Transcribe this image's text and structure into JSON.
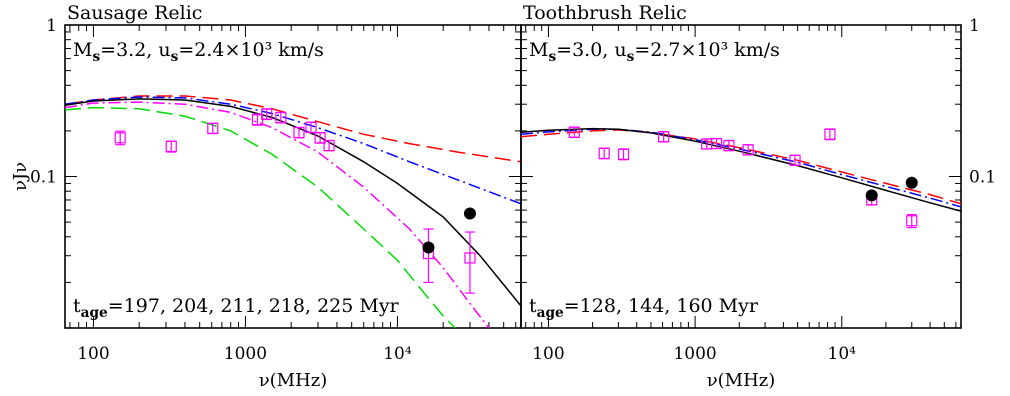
{
  "chart_data": [
    {
      "type": "line",
      "title": "Sausage Relic",
      "annotation_top": "M_s=3.2, u_s=2.4×10³ km/s",
      "annotation_bottom": "t_age=197, 204, 211, 218, 225 Myr",
      "xlabel": "ν(MHz)",
      "ylabel": "νJν",
      "x_scale": "log",
      "y_scale": "log",
      "xlim": [
        65,
        65000
      ],
      "ylim": [
        0.01,
        1
      ],
      "x_ticks": [
        {
          "value": 100,
          "label": "100"
        },
        {
          "value": 1000,
          "label": "1000"
        },
        {
          "value": 10000,
          "label": "10⁴"
        }
      ],
      "y_ticks": [
        {
          "value": 0.1,
          "label": "0.1"
        },
        {
          "value": 1,
          "label": "1"
        }
      ],
      "series": [
        {
          "color": "#ff0000",
          "dash": "long-dash",
          "points": [
            [
              65,
              0.3
            ],
            [
              100,
              0.32
            ],
            [
              200,
              0.34
            ],
            [
              400,
              0.34
            ],
            [
              800,
              0.32
            ],
            [
              1500,
              0.28
            ],
            [
              3000,
              0.23
            ],
            [
              6000,
              0.19
            ],
            [
              12000,
              0.165
            ],
            [
              25000,
              0.145
            ],
            [
              65000,
              0.125
            ]
          ]
        },
        {
          "color": "#0000ff",
          "dash": "dash-dot",
          "points": [
            [
              65,
              0.3
            ],
            [
              100,
              0.32
            ],
            [
              200,
              0.335
            ],
            [
              400,
              0.33
            ],
            [
              800,
              0.3
            ],
            [
              1500,
              0.26
            ],
            [
              3000,
              0.21
            ],
            [
              6000,
              0.165
            ],
            [
              12000,
              0.125
            ],
            [
              25000,
              0.095
            ],
            [
              65000,
              0.066
            ]
          ]
        },
        {
          "color": "#000000",
          "dash": "solid",
          "points": [
            [
              65,
              0.295
            ],
            [
              100,
              0.315
            ],
            [
              200,
              0.325
            ],
            [
              400,
              0.32
            ],
            [
              800,
              0.29
            ],
            [
              1500,
              0.245
            ],
            [
              3000,
              0.185
            ],
            [
              6000,
              0.125
            ],
            [
              10000,
              0.09
            ],
            [
              20000,
              0.054
            ],
            [
              35000,
              0.03
            ],
            [
              65000,
              0.014
            ]
          ]
        },
        {
          "color": "#ff00ff",
          "dash": "dash-dot",
          "points": [
            [
              65,
              0.285
            ],
            [
              100,
              0.305
            ],
            [
              200,
              0.31
            ],
            [
              400,
              0.3
            ],
            [
              800,
              0.265
            ],
            [
              1500,
              0.21
            ],
            [
              3000,
              0.145
            ],
            [
              6000,
              0.085
            ],
            [
              12000,
              0.045
            ],
            [
              20000,
              0.025
            ],
            [
              30000,
              0.0145
            ],
            [
              40000,
              0.01
            ]
          ]
        },
        {
          "color": "#00dd00",
          "dash": "long-dash",
          "points": [
            [
              65,
              0.275
            ],
            [
              100,
              0.285
            ],
            [
              200,
              0.28
            ],
            [
              400,
              0.25
            ],
            [
              800,
              0.2
            ],
            [
              1500,
              0.14
            ],
            [
              3000,
              0.085
            ],
            [
              6000,
              0.045
            ],
            [
              10000,
              0.028
            ],
            [
              15000,
              0.017
            ],
            [
              20000,
              0.012
            ],
            [
              24000,
              0.01
            ]
          ]
        }
      ],
      "observations_open": {
        "color": "#ff00ff",
        "points": [
          {
            "x": 150,
            "y": 0.18,
            "lo": 0.162,
            "hi": 0.199
          },
          {
            "x": 325,
            "y": 0.158,
            "lo": 0.145,
            "hi": 0.171
          },
          {
            "x": 610,
            "y": 0.208,
            "lo": 0.192,
            "hi": 0.224
          },
          {
            "x": 1200,
            "y": 0.237,
            "lo": 0.218,
            "hi": 0.258
          },
          {
            "x": 1380,
            "y": 0.258,
            "lo": 0.238,
            "hi": 0.28
          },
          {
            "x": 1710,
            "y": 0.245,
            "lo": 0.226,
            "hi": 0.265
          },
          {
            "x": 2250,
            "y": 0.195,
            "lo": 0.18,
            "hi": 0.211
          },
          {
            "x": 2700,
            "y": 0.211,
            "lo": 0.195,
            "hi": 0.228
          },
          {
            "x": 3100,
            "y": 0.18,
            "lo": 0.166,
            "hi": 0.195
          },
          {
            "x": 3550,
            "y": 0.16,
            "lo": 0.148,
            "hi": 0.173
          },
          {
            "x": 16000,
            "y": 0.031,
            "lo": 0.02,
            "hi": 0.045
          },
          {
            "x": 30000,
            "y": 0.029,
            "lo": 0.017,
            "hi": 0.043
          }
        ]
      },
      "observations_filled": {
        "color": "#000000",
        "points": [
          {
            "x": 16000,
            "y": 0.034
          },
          {
            "x": 30000,
            "y": 0.057
          }
        ]
      }
    },
    {
      "type": "line",
      "title": "Toothbrush Relic",
      "annotation_top": "M_s=3.0, u_s=2.7×10³ km/s",
      "annotation_bottom": "t_age=128, 144, 160 Myr",
      "xlabel": "ν(MHz)",
      "ylabel": "",
      "x_scale": "log",
      "y_scale": "log",
      "xlim": [
        65,
        65000
      ],
      "ylim": [
        0.01,
        1
      ],
      "x_ticks": [
        {
          "value": 100,
          "label": "100"
        },
        {
          "value": 1000,
          "label": "1000"
        },
        {
          "value": 10000,
          "label": "10⁴"
        }
      ],
      "y_ticks": [
        {
          "value": 0.1,
          "label": "0.1"
        },
        {
          "value": 1,
          "label": "1"
        }
      ],
      "series": [
        {
          "color": "#ff0000",
          "dash": "long-dash",
          "points": [
            [
              65,
              0.183
            ],
            [
              100,
              0.19
            ],
            [
              200,
              0.2
            ],
            [
              300,
              0.203
            ],
            [
              500,
              0.195
            ],
            [
              1000,
              0.177
            ],
            [
              2000,
              0.155
            ],
            [
              5000,
              0.128
            ],
            [
              10000,
              0.107
            ],
            [
              20000,
              0.09
            ],
            [
              40000,
              0.076
            ],
            [
              65000,
              0.066
            ]
          ]
        },
        {
          "color": "#0000ff",
          "dash": "dash-dot",
          "points": [
            [
              65,
              0.19
            ],
            [
              100,
              0.197
            ],
            [
              200,
              0.205
            ],
            [
              300,
              0.205
            ],
            [
              500,
              0.196
            ],
            [
              1000,
              0.175
            ],
            [
              2000,
              0.152
            ],
            [
              5000,
              0.124
            ],
            [
              10000,
              0.103
            ],
            [
              20000,
              0.086
            ],
            [
              40000,
              0.072
            ],
            [
              65000,
              0.063
            ]
          ]
        },
        {
          "color": "#000000",
          "dash": "solid",
          "points": [
            [
              65,
              0.196
            ],
            [
              100,
              0.202
            ],
            [
              200,
              0.207
            ],
            [
              300,
              0.205
            ],
            [
              500,
              0.194
            ],
            [
              1000,
              0.171
            ],
            [
              2000,
              0.147
            ],
            [
              5000,
              0.118
            ],
            [
              10000,
              0.098
            ],
            [
              20000,
              0.081
            ],
            [
              40000,
              0.067
            ],
            [
              65000,
              0.059
            ]
          ]
        }
      ],
      "observations_open": {
        "color": "#ff00ff",
        "points": [
          {
            "x": 150,
            "y": 0.196,
            "lo": 0.181,
            "hi": 0.212
          },
          {
            "x": 240,
            "y": 0.142,
            "lo": 0.131,
            "hi": 0.154
          },
          {
            "x": 325,
            "y": 0.14,
            "lo": 0.129,
            "hi": 0.152
          },
          {
            "x": 610,
            "y": 0.183,
            "lo": 0.169,
            "hi": 0.198
          },
          {
            "x": 1200,
            "y": 0.164,
            "lo": 0.152,
            "hi": 0.177
          },
          {
            "x": 1400,
            "y": 0.165,
            "lo": 0.153,
            "hi": 0.178
          },
          {
            "x": 1700,
            "y": 0.16,
            "lo": 0.148,
            "hi": 0.173
          },
          {
            "x": 2300,
            "y": 0.15,
            "lo": 0.139,
            "hi": 0.162
          },
          {
            "x": 4800,
            "y": 0.128,
            "lo": 0.119,
            "hi": 0.138
          },
          {
            "x": 8300,
            "y": 0.19,
            "lo": 0.175,
            "hi": 0.206
          },
          {
            "x": 16000,
            "y": 0.07,
            "lo": 0.065,
            "hi": 0.076
          },
          {
            "x": 30000,
            "y": 0.051,
            "lo": 0.046,
            "hi": 0.056
          }
        ]
      },
      "observations_filled": {
        "color": "#000000",
        "points": [
          {
            "x": 16000,
            "y": 0.075
          },
          {
            "x": 30000,
            "y": 0.091
          }
        ]
      }
    }
  ]
}
